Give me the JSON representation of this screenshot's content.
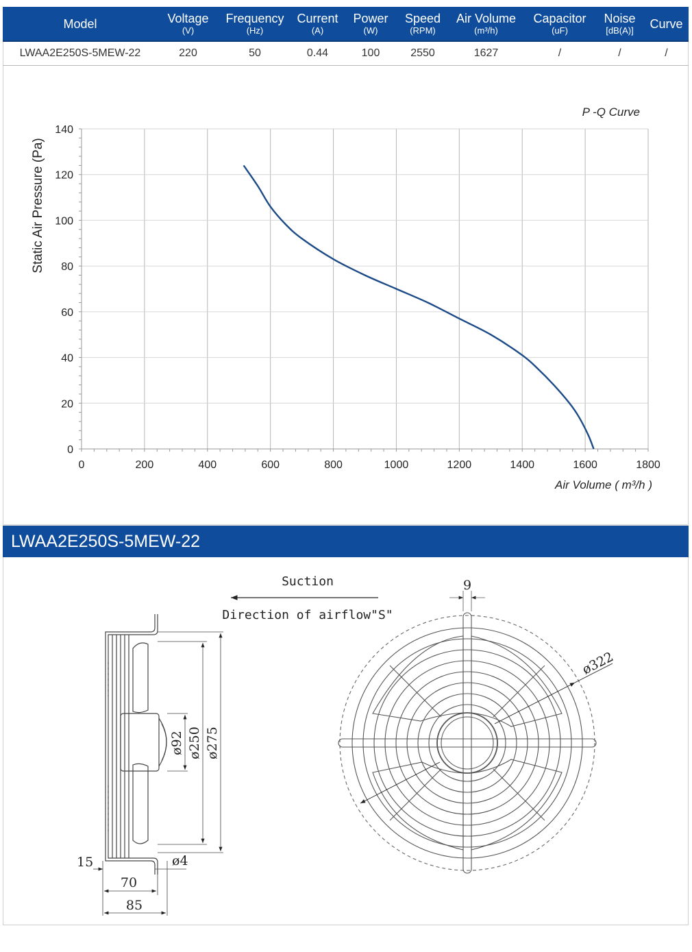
{
  "spec_table": {
    "headers": [
      {
        "name": "Model",
        "unit": ""
      },
      {
        "name": "Voltage",
        "unit": "(V)"
      },
      {
        "name": "Frequency",
        "unit": "(Hz)"
      },
      {
        "name": "Current",
        "unit": "(A)"
      },
      {
        "name": "Power",
        "unit": "(W)"
      },
      {
        "name": "Speed",
        "unit": "(RPM)"
      },
      {
        "name": "Air Volume",
        "unit": "(m³/h)"
      },
      {
        "name": "Capacitor",
        "unit": "(uF)"
      },
      {
        "name": "Noise",
        "unit": "[dB(A)]"
      },
      {
        "name": "Curve",
        "unit": ""
      }
    ],
    "row": [
      "LWAA2E250S-5MEW-22",
      "220",
      "50",
      "0.44",
      "100",
      "2550",
      "1627",
      "/",
      "/",
      "/"
    ]
  },
  "chart_data": {
    "type": "line",
    "title": "P -Q Curve",
    "xlabel": "Air Volume ( m³/h )",
    "ylabel": "Static Air Pressure  (Pa)",
    "xlim": [
      0,
      1800
    ],
    "ylim": [
      0,
      140
    ],
    "x_ticks": [
      "0",
      "200",
      "400",
      "600",
      "800",
      "1000",
      "1200",
      "1400",
      "1600",
      "1800"
    ],
    "y_ticks": [
      "0",
      "20",
      "40",
      "60",
      "80",
      "100",
      "120",
      "140"
    ],
    "grid": true,
    "line_color": "#1b4a86",
    "series": [
      {
        "name": "",
        "x": [
          515,
          560,
          600,
          650,
          700,
          800,
          900,
          1000,
          1100,
          1200,
          1300,
          1400,
          1450,
          1500,
          1550,
          1580,
          1610,
          1627
        ],
        "y": [
          124,
          115,
          106,
          98,
          92,
          83,
          76,
          70,
          64,
          57,
          50,
          41,
          35,
          28,
          20,
          14,
          6,
          0
        ]
      }
    ]
  },
  "model_band": {
    "title": "LWAA2E250S-5MEW-22"
  },
  "drawing": {
    "suction_label": "Suction",
    "direction_label": "Direction of airflow\"S\"",
    "dims": {
      "d92": "ø92",
      "d250": "ø250",
      "d275": "ø275",
      "d4": "ø4",
      "w15": "15",
      "w70": "70",
      "w85": "85",
      "w9": "9",
      "d322": "ø322"
    }
  }
}
